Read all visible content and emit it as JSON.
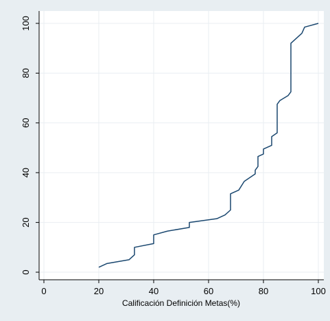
{
  "chart_data": {
    "type": "line",
    "title": "",
    "xlabel": "Calificación Definición Metas(%)",
    "ylabel": "",
    "xlim": [
      0,
      100
    ],
    "ylim": [
      0,
      100
    ],
    "xticks": [
      0,
      20,
      40,
      60,
      80,
      100
    ],
    "yticks": [
      0,
      20,
      40,
      60,
      80,
      100
    ],
    "grid": true,
    "legend": "none",
    "colors": {
      "background": "#e8eef2",
      "plot_background": "#ffffff",
      "line": "#1a476f",
      "grid": "#e9eef2",
      "axis": "#000000"
    },
    "series": [
      {
        "points": [
          [
            20,
            2
          ],
          [
            23,
            3.5
          ],
          [
            31,
            5
          ],
          [
            33,
            7
          ],
          [
            33,
            10
          ],
          [
            40,
            11.5
          ],
          [
            40,
            15
          ],
          [
            45,
            16.5
          ],
          [
            53,
            18
          ],
          [
            53,
            20
          ],
          [
            63,
            21.5
          ],
          [
            66,
            23
          ],
          [
            68,
            25
          ],
          [
            68,
            31.5
          ],
          [
            71,
            33
          ],
          [
            73,
            36.5
          ],
          [
            77,
            39.5
          ],
          [
            77,
            41
          ],
          [
            78,
            42.5
          ],
          [
            78,
            46.5
          ],
          [
            80,
            47.5
          ],
          [
            80,
            49.5
          ],
          [
            83,
            51
          ],
          [
            83,
            54.5
          ],
          [
            85,
            56
          ],
          [
            85,
            67.5
          ],
          [
            86,
            69
          ],
          [
            89,
            71
          ],
          [
            90,
            72.5
          ],
          [
            90,
            92
          ],
          [
            94,
            96
          ],
          [
            95,
            98.5
          ],
          [
            100,
            100
          ]
        ]
      }
    ]
  }
}
